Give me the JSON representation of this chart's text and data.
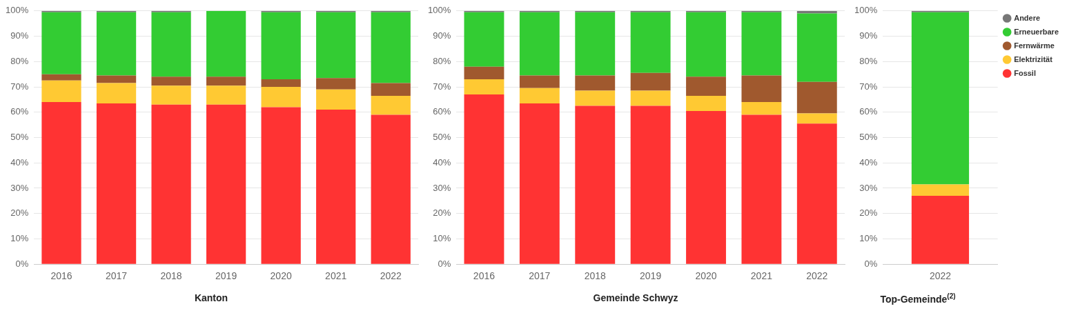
{
  "chart_data": [
    {
      "type": "bar",
      "stacked": true,
      "xlabel": "Kanton",
      "categories": [
        "2016",
        "2017",
        "2018",
        "2019",
        "2020",
        "2021",
        "2022"
      ],
      "series": [
        {
          "color": "#ff3333",
          "values": [
            64,
            63.5,
            63,
            63,
            62,
            61,
            59
          ]
        },
        {
          "color": "#ffc933",
          "values": [
            8.5,
            8,
            7.5,
            7.5,
            8,
            8,
            7.5
          ]
        },
        {
          "color": "#a0592e",
          "values": [
            2.5,
            3,
            3.5,
            3.5,
            3,
            4.5,
            5
          ]
        },
        {
          "color": "#33cc33",
          "values": [
            24.5,
            25,
            25.5,
            26,
            26.5,
            26,
            28
          ]
        },
        {
          "color": "#777777",
          "values": [
            0.5,
            0.5,
            0.5,
            0,
            0.5,
            0.5,
            0.5
          ]
        }
      ],
      "ylim": [
        0,
        100
      ],
      "yticks": [
        {
          "value": 0,
          "label": "0%"
        },
        {
          "value": 10,
          "label": "10%"
        },
        {
          "value": 20,
          "label": "20%"
        },
        {
          "value": 30,
          "label": "30%"
        },
        {
          "value": 40,
          "label": "40%"
        },
        {
          "value": 50,
          "label": "50%"
        },
        {
          "value": 60,
          "label": "60%"
        },
        {
          "value": 70,
          "label": "70%"
        },
        {
          "value": 80,
          "label": "80%"
        },
        {
          "value": 90,
          "label": "90%"
        },
        {
          "value": 100,
          "label": "100%"
        }
      ],
      "grid": "y",
      "legend": false
    },
    {
      "type": "bar",
      "stacked": true,
      "xlabel": "Gemeinde Schwyz",
      "categories": [
        "2016",
        "2017",
        "2018",
        "2019",
        "2020",
        "2021",
        "2022"
      ],
      "series": [
        {
          "color": "#ff3333",
          "values": [
            67,
            63.5,
            62.5,
            62.5,
            60.5,
            59,
            55.5
          ]
        },
        {
          "color": "#ffc933",
          "values": [
            6,
            6,
            6,
            6,
            6,
            5,
            4
          ]
        },
        {
          "color": "#a0592e",
          "values": [
            5,
            5,
            6,
            7,
            7.5,
            10.5,
            12.5
          ]
        },
        {
          "color": "#33cc33",
          "values": [
            21.5,
            25,
            25,
            24,
            25.5,
            25,
            27
          ]
        },
        {
          "color": "#777777",
          "values": [
            0.5,
            0.5,
            0.5,
            0.5,
            0.5,
            0.5,
            1
          ]
        }
      ],
      "ylim": [
        0,
        100
      ],
      "yticks": [
        {
          "value": 0,
          "label": "0%"
        },
        {
          "value": 10,
          "label": "10%"
        },
        {
          "value": 20,
          "label": "20%"
        },
        {
          "value": 30,
          "label": "30%"
        },
        {
          "value": 40,
          "label": "40%"
        },
        {
          "value": 50,
          "label": "50%"
        },
        {
          "value": 60,
          "label": "60%"
        },
        {
          "value": 70,
          "label": "70%"
        },
        {
          "value": 80,
          "label": "80%"
        },
        {
          "value": 90,
          "label": "90%"
        },
        {
          "value": 100,
          "label": "100%"
        }
      ],
      "grid": "y",
      "legend": false
    },
    {
      "type": "bar",
      "stacked": true,
      "xlabel": "Top-Gemeinde$^{(2)}$",
      "categories": [
        "2022"
      ],
      "series": [
        {
          "name": "Fossil",
          "color": "#ff3333",
          "values": [
            27
          ]
        },
        {
          "name": "Elektrizität",
          "color": "#ffc933",
          "values": [
            4.5
          ]
        },
        {
          "name": "Fernwärme",
          "color": "#a0592e",
          "values": [
            0
          ]
        },
        {
          "name": "Erneuerbare",
          "color": "#33cc33",
          "values": [
            68
          ]
        },
        {
          "name": "Andere",
          "color": "#777777",
          "values": [
            0.5
          ]
        }
      ],
      "ylim": [
        0,
        100
      ],
      "yticks": [
        {
          "value": 0,
          "label": "0%"
        },
        {
          "value": 10,
          "label": "10%"
        },
        {
          "value": 20,
          "label": "20%"
        },
        {
          "value": 30,
          "label": "30%"
        },
        {
          "value": 40,
          "label": "40%"
        },
        {
          "value": 50,
          "label": "50%"
        },
        {
          "value": 60,
          "label": "60%"
        },
        {
          "value": 70,
          "label": "70%"
        },
        {
          "value": 80,
          "label": "80%"
        },
        {
          "value": 90,
          "label": "90%"
        },
        {
          "value": 100,
          "label": "100%"
        }
      ],
      "grid": "y",
      "legend": "top right"
    }
  ]
}
